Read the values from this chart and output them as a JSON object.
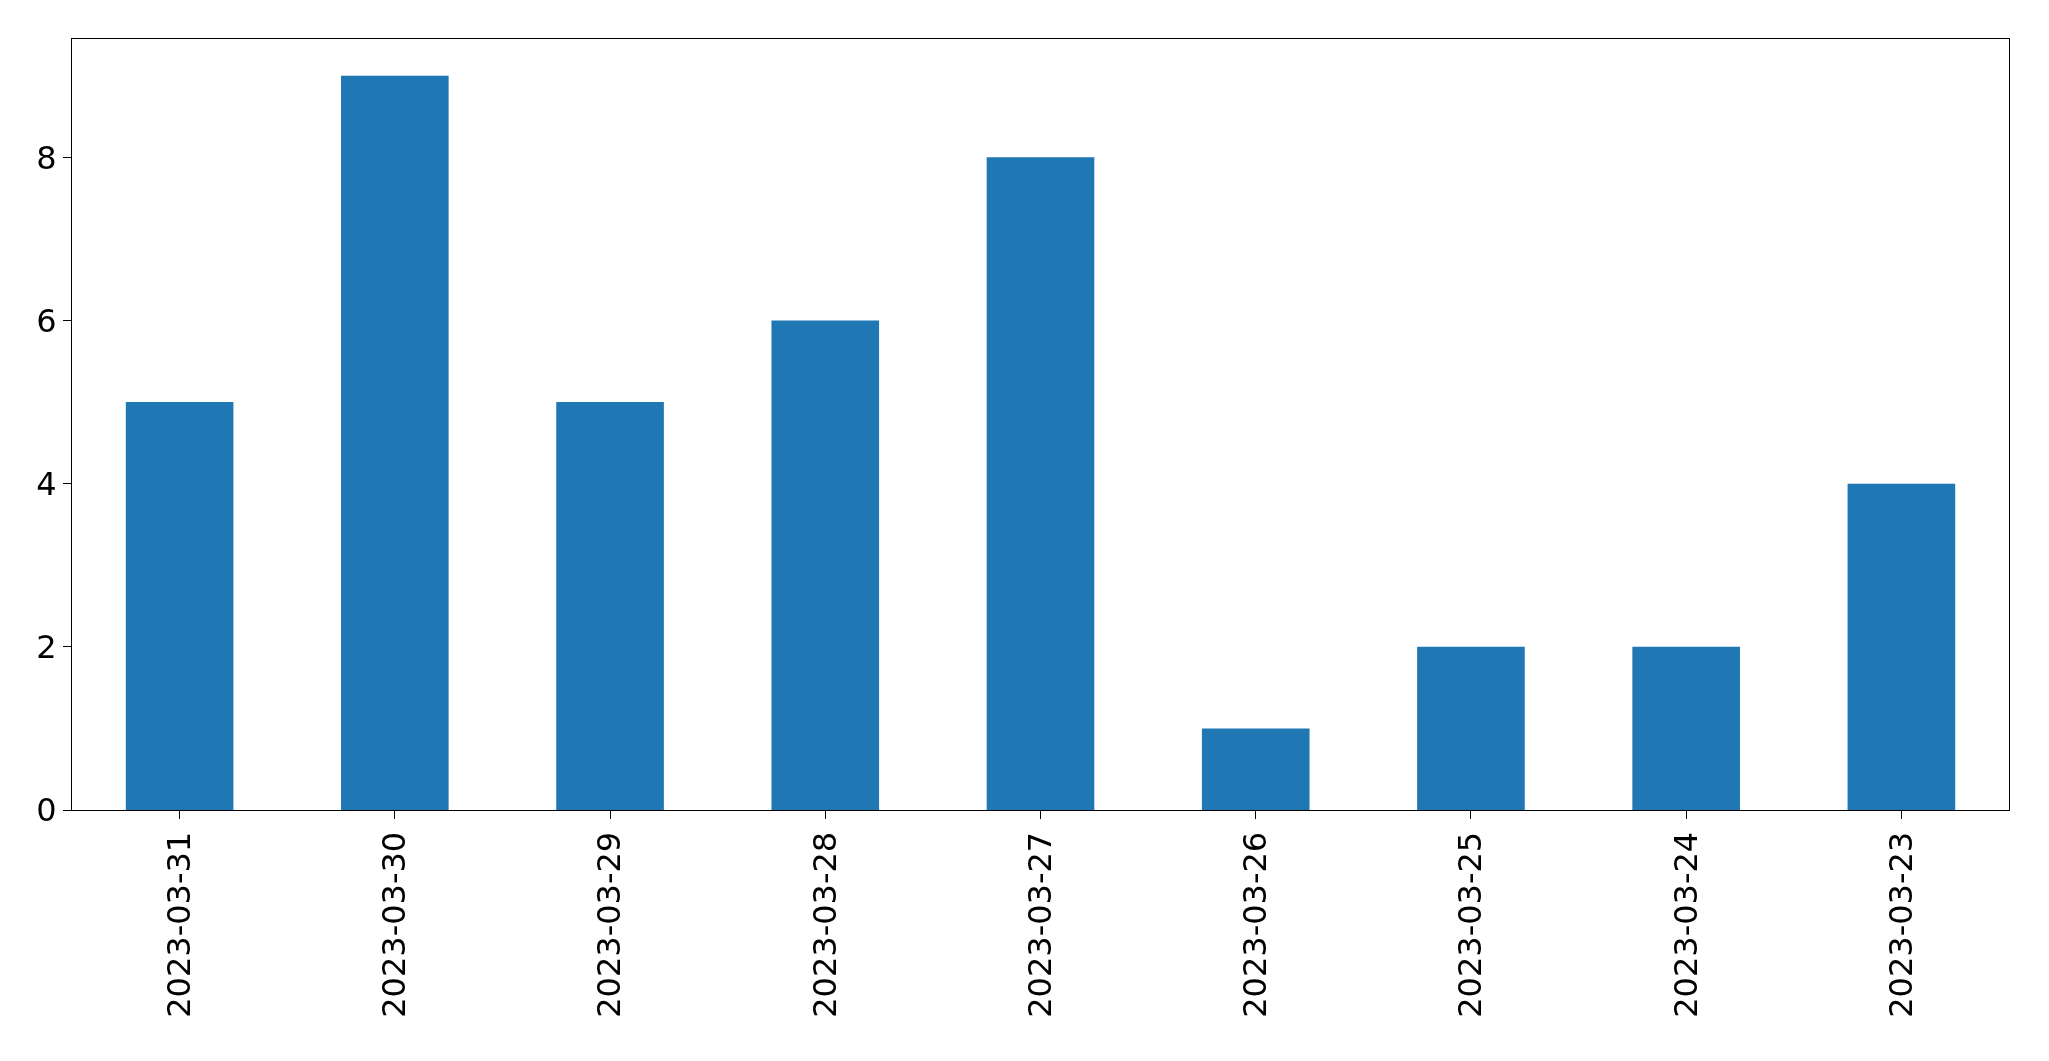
{
  "chart_data": {
    "type": "bar",
    "categories": [
      "2023-03-31",
      "2023-03-30",
      "2023-03-29",
      "2023-03-28",
      "2023-03-27",
      "2023-03-26",
      "2023-03-25",
      "2023-03-24",
      "2023-03-23"
    ],
    "values": [
      5,
      9,
      5,
      6,
      8,
      1,
      2,
      2,
      4
    ],
    "color": "#1f77b4",
    "ylim": [
      0,
      9.45
    ],
    "yticks": [
      0,
      2,
      4,
      6,
      8
    ]
  }
}
